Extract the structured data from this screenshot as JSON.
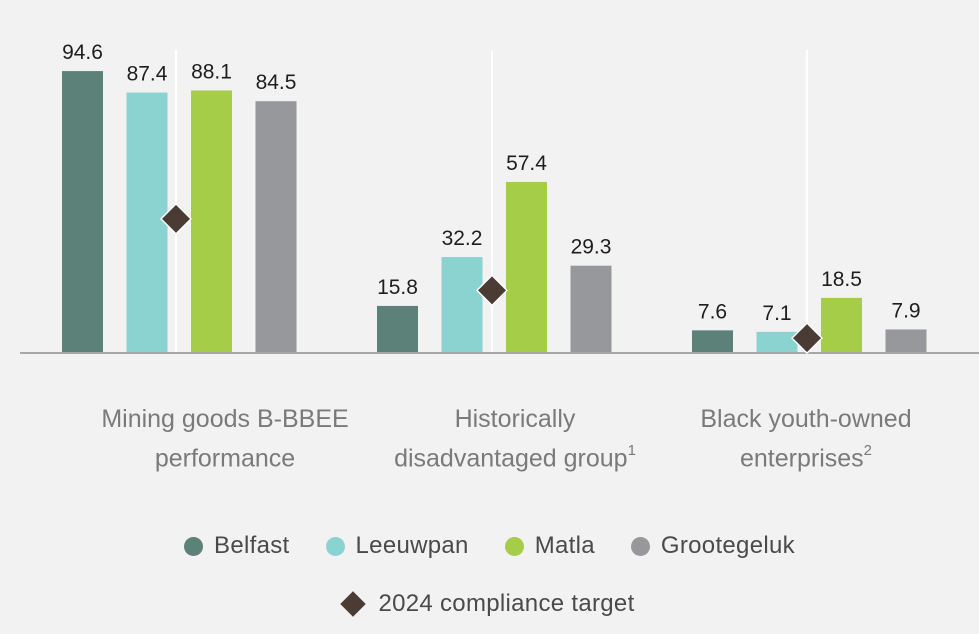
{
  "chart_data": {
    "type": "bar",
    "categories": [
      {
        "line1": "Mining goods B-BBEE",
        "line2": "performance",
        "note": ""
      },
      {
        "line1": "Historically",
        "line2": "disadvantaged group",
        "note": "1"
      },
      {
        "line1": "Black youth-owned",
        "line2": "enterprises",
        "note": "2"
      }
    ],
    "series": [
      {
        "name": "Belfast",
        "color": "#5c8178",
        "values": [
          94.6,
          15.8,
          7.6
        ],
        "labels": [
          "94.6",
          "15.8",
          "7.6"
        ]
      },
      {
        "name": "Leeuwpan",
        "color": "#8ad3d1",
        "values": [
          87.4,
          32.2,
          7.1
        ],
        "labels": [
          "87.4",
          "32.2",
          "7.1"
        ]
      },
      {
        "name": "Matla",
        "color": "#a5cd48",
        "values": [
          88.1,
          57.4,
          18.5
        ],
        "labels": [
          "88.1",
          "57.4",
          "18.5"
        ]
      },
      {
        "name": "Grootegeluk",
        "color": "#97989b",
        "values": [
          84.5,
          29.3,
          7.9
        ],
        "labels": [
          "84.5",
          "29.3",
          "7.9"
        ]
      }
    ],
    "target": {
      "name": "2024 compliance target",
      "color": "#4a3c35",
      "values": [
        45,
        21,
        5
      ]
    },
    "ylim": [
      0,
      100
    ],
    "grid": false,
    "legend_position": "bottom"
  }
}
